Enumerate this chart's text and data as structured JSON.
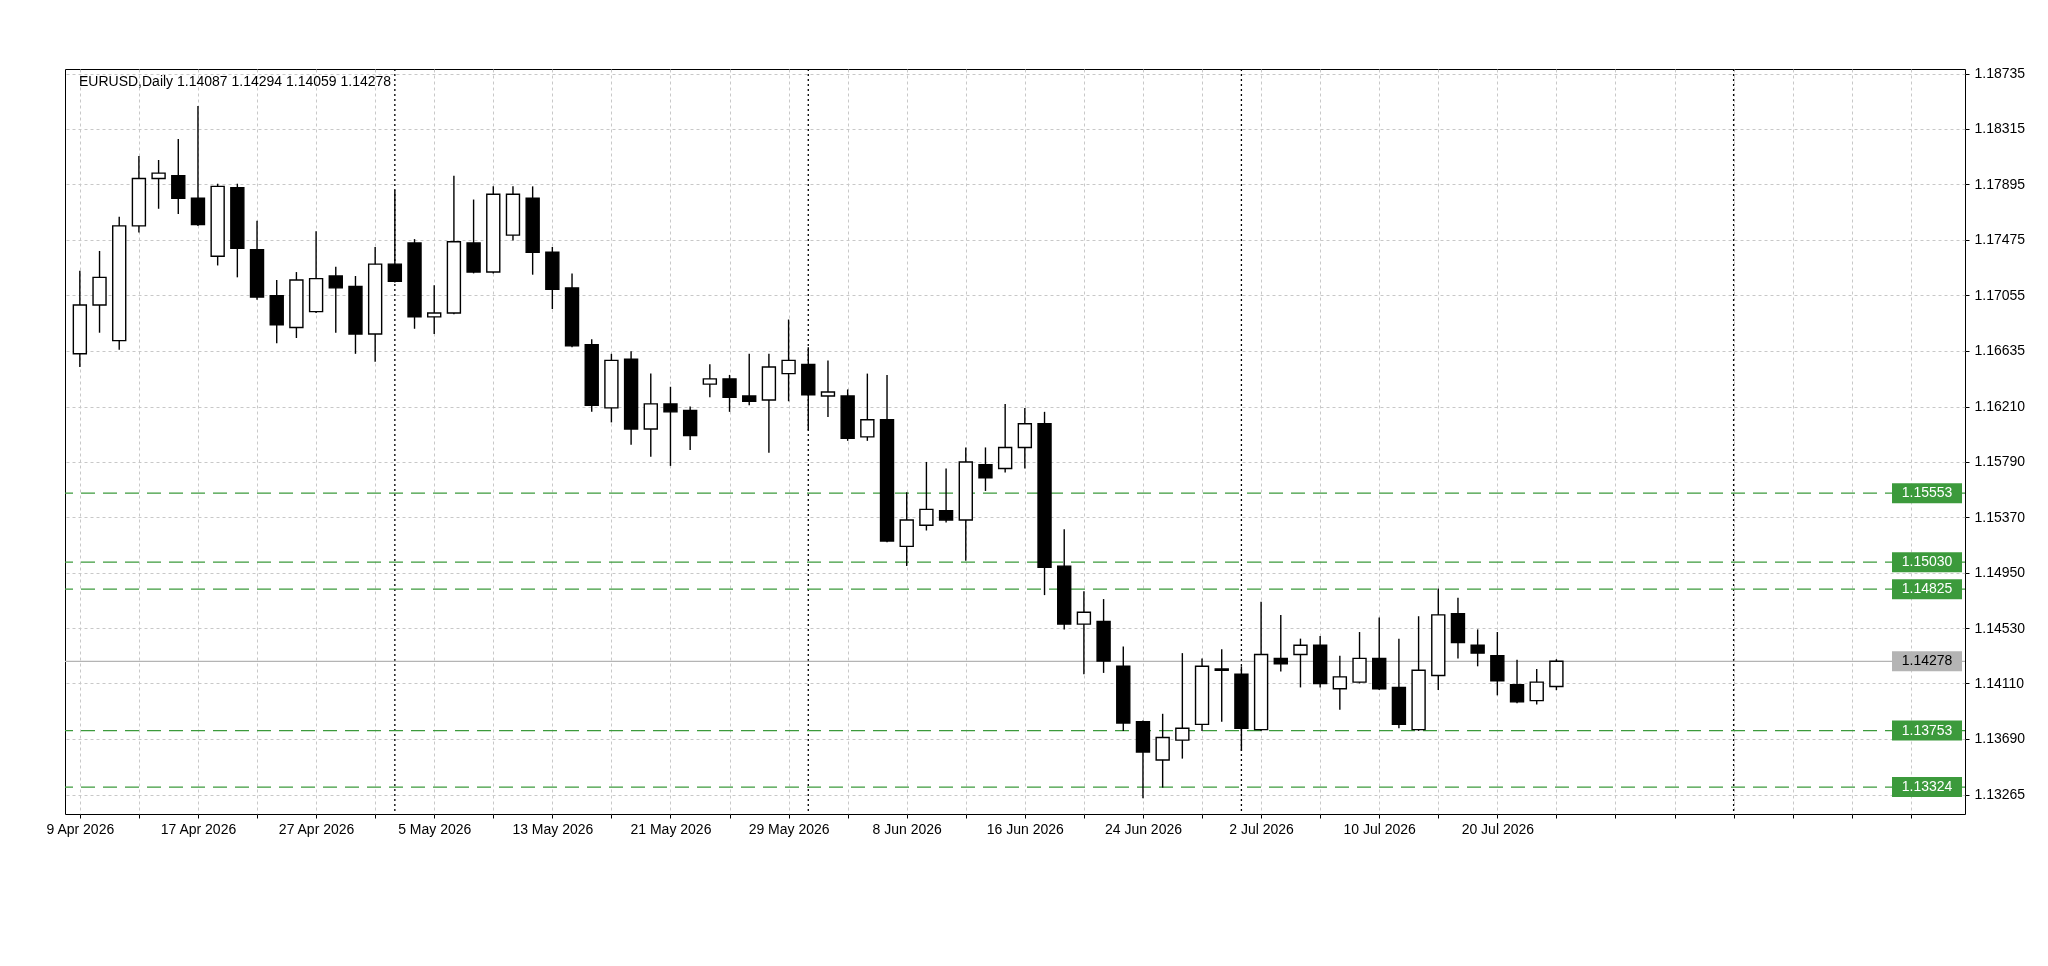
{
  "chart_data": {
    "type": "candlestick",
    "title": "EURUSD,Daily 1.14087 1.14294 1.14059 1.14278",
    "categories": [
      "9 Apr 2026",
      null,
      null,
      null,
      null,
      null,
      "17 Apr 2026",
      null,
      null,
      null,
      null,
      null,
      "27 Apr 2026",
      null,
      null,
      null,
      null,
      null,
      "5 May 2026",
      null,
      null,
      null,
      null,
      null,
      "13 May 2026",
      null,
      null,
      null,
      null,
      null,
      "21 May 2026",
      null,
      null,
      null,
      null,
      null,
      "29 May 2026",
      null,
      null,
      null,
      null,
      null,
      "8 Jun 2026",
      null,
      null,
      null,
      null,
      null,
      "16 Jun 2026",
      null,
      null,
      null,
      null,
      null,
      "24 Jun 2026",
      null,
      null,
      null,
      null,
      null,
      "2 Jul 2026",
      null,
      null,
      null,
      null,
      null,
      "10 Jul 2026",
      null,
      null,
      null,
      null,
      null,
      "20 Jul 2026",
      null,
      null,
      null,
      null,
      null,
      null,
      null,
      null,
      null,
      null,
      null,
      null,
      null,
      null,
      null,
      null,
      null,
      null,
      null,
      null,
      null,
      null,
      null
    ],
    "ohlc": [
      [
        1.1661,
        1.1724,
        1.1651,
        1.1698
      ],
      [
        1.1698,
        1.1739,
        1.1677,
        1.1719
      ],
      [
        1.1671,
        1.1765,
        1.1664,
        1.1758
      ],
      [
        1.1758,
        1.1811,
        1.1753,
        1.1794
      ],
      [
        1.1794,
        1.1808,
        1.1771,
        1.1798
      ],
      [
        1.1796,
        1.1824,
        1.1767,
        1.1779
      ],
      [
        1.1779,
        1.1849,
        1.1758,
        1.1759
      ],
      [
        1.1735,
        1.179,
        1.1728,
        1.1788
      ],
      [
        1.1787,
        1.179,
        1.1719,
        1.1741
      ],
      [
        1.174,
        1.1762,
        1.1702,
        1.1704
      ],
      [
        1.1705,
        1.1717,
        1.1669,
        1.1683
      ],
      [
        1.1681,
        1.1723,
        1.1673,
        1.1717
      ],
      [
        1.1693,
        1.1754,
        1.1692,
        1.1718
      ],
      [
        1.172,
        1.1727,
        1.1677,
        1.1711
      ],
      [
        1.1712,
        1.172,
        1.1661,
        1.1676
      ],
      [
        1.1676,
        1.1742,
        1.1655,
        1.1729
      ],
      [
        1.1729,
        1.1785,
        1.1715,
        1.1716
      ],
      [
        1.1745,
        1.1748,
        1.168,
        1.1689
      ],
      [
        1.1689,
        1.1713,
        1.1676,
        1.1692
      ],
      [
        1.1692,
        1.1796,
        1.1691,
        1.1746
      ],
      [
        1.1745,
        1.1778,
        1.1722,
        1.1723
      ],
      [
        1.1723,
        1.1788,
        1.1722,
        1.1782
      ],
      [
        1.1751,
        1.1788,
        1.1747,
        1.1782
      ],
      [
        1.1779,
        1.1788,
        1.1721,
        1.1738
      ],
      [
        1.1738,
        1.1742,
        1.1695,
        1.171
      ],
      [
        1.1711,
        1.1722,
        1.1666,
        1.1667
      ],
      [
        1.1668,
        1.1672,
        1.1617,
        1.1622
      ],
      [
        1.162,
        1.1661,
        1.1609,
        1.1656
      ],
      [
        1.1657,
        1.1663,
        1.1592,
        1.1604
      ],
      [
        1.1604,
        1.1646,
        1.1583,
        1.1623
      ],
      [
        1.1623,
        1.1636,
        1.1576,
        1.1617
      ],
      [
        1.1618,
        1.1621,
        1.1588,
        1.1599
      ],
      [
        1.1638,
        1.1653,
        1.1628,
        1.1642
      ],
      [
        1.1642,
        1.1645,
        1.1617,
        1.1628
      ],
      [
        1.1629,
        1.1661,
        1.1622,
        1.1625
      ],
      [
        1.1626,
        1.1661,
        1.1586,
        1.1651
      ],
      [
        1.1646,
        1.1687,
        1.1625,
        1.1656
      ],
      [
        1.1653,
        1.1666,
        1.1603,
        1.163
      ],
      [
        1.1629,
        1.1656,
        1.1613,
        1.1632
      ],
      [
        1.1629,
        1.1634,
        1.1595,
        1.1597
      ],
      [
        1.1598,
        1.1646,
        1.1595,
        1.1611
      ],
      [
        1.1611,
        1.1645,
        1.1518,
        1.1519
      ],
      [
        1.1515,
        1.1556,
        1.15,
        1.1535
      ],
      [
        1.1531,
        1.1579,
        1.1527,
        1.1543
      ],
      [
        1.1542,
        1.1574,
        1.1533,
        1.1535
      ],
      [
        1.1535,
        1.159,
        1.1504,
        1.1579
      ],
      [
        1.1577,
        1.159,
        1.1557,
        1.1567
      ],
      [
        1.1574,
        1.1623,
        1.1571,
        1.159
      ],
      [
        1.159,
        1.162,
        1.1574,
        1.1608
      ],
      [
        1.1608,
        1.1617,
        1.1478,
        1.1499
      ],
      [
        1.15,
        1.1528,
        1.1452,
        1.1456
      ],
      [
        1.1456,
        1.1481,
        1.1418,
        1.1465
      ],
      [
        1.1458,
        1.1475,
        1.1419,
        1.1428
      ],
      [
        1.1424,
        1.1439,
        1.1375,
        1.1381
      ],
      [
        1.1382,
        1.1383,
        1.1324,
        1.1359
      ],
      [
        1.1353,
        1.1388,
        1.1332,
        1.137
      ],
      [
        1.1368,
        1.1434,
        1.1354,
        1.1377
      ],
      [
        1.138,
        1.143,
        1.1375,
        1.1424
      ],
      [
        1.1422,
        1.1437,
        1.1382,
        1.1421
      ],
      [
        1.1418,
        1.1424,
        1.136,
        1.1377
      ],
      [
        1.1376,
        1.1473,
        1.1375,
        1.1433
      ],
      [
        1.143,
        1.1463,
        1.142,
        1.1426
      ],
      [
        1.1433,
        1.1445,
        1.1408,
        1.144
      ],
      [
        1.144,
        1.1447,
        1.1408,
        1.1411
      ],
      [
        1.1407,
        1.1432,
        1.1391,
        1.1416
      ],
      [
        1.1412,
        1.145,
        1.1411,
        1.143
      ],
      [
        1.143,
        1.1461,
        1.1406,
        1.1407
      ],
      [
        1.1408,
        1.1445,
        1.1377,
        1.138
      ],
      [
        1.1376,
        1.1462,
        1.1375,
        1.1421
      ],
      [
        1.1417,
        1.1483,
        1.1406,
        1.1463
      ],
      [
        1.1464,
        1.1476,
        1.143,
        1.1442
      ],
      [
        1.144,
        1.1452,
        1.1424,
        1.1434
      ],
      [
        1.1432,
        1.145,
        1.1402,
        1.1413
      ],
      [
        1.141,
        1.1429,
        1.1396,
        1.1397
      ],
      [
        1.1398,
        1.1422,
        1.1395,
        1.1412
      ],
      [
        1.14087,
        1.14294,
        1.14059,
        1.14278
      ],
      null,
      null,
      null,
      null,
      null,
      null,
      null,
      null,
      null,
      null,
      null,
      null,
      null,
      null,
      null,
      null,
      null,
      null,
      null,
      null
    ],
    "color": "#000000",
    "colors": [
      "#ffffff",
      "#ffffff",
      "#ffffff",
      "#ffffff",
      "#ffffff",
      "#000000",
      "#000000",
      "#ffffff",
      "#000000",
      "#000000",
      "#000000",
      "#ffffff",
      "#ffffff",
      "#000000",
      "#000000",
      "#ffffff",
      "#000000",
      "#000000",
      "#ffffff",
      "#ffffff",
      "#000000",
      "#ffffff",
      "#ffffff",
      "#000000",
      "#000000",
      "#000000",
      "#000000",
      "#ffffff",
      "#000000",
      "#ffffff",
      "#000000",
      "#000000",
      "#ffffff",
      "#000000",
      "#000000",
      "#ffffff",
      "#ffffff",
      "#000000",
      "#ffffff",
      "#000000",
      "#ffffff",
      "#000000",
      "#ffffff",
      "#ffffff",
      "#000000",
      "#ffffff",
      "#000000",
      "#ffffff",
      "#ffffff",
      "#000000",
      "#000000",
      "#ffffff",
      "#000000",
      "#000000",
      "#000000",
      "#ffffff",
      "#ffffff",
      "#ffffff",
      "#000000",
      "#000000",
      "#ffffff",
      "#000000",
      "#ffffff",
      "#000000",
      "#ffffff",
      "#ffffff",
      "#000000",
      "#000000",
      "#ffffff",
      "#ffffff",
      "#000000",
      "#000000",
      "#000000",
      "#000000",
      "#ffffff",
      "#ffffff",
      null,
      null,
      null,
      null,
      null,
      null,
      null,
      null,
      null,
      null,
      null,
      null,
      null,
      null,
      null,
      null,
      null,
      null,
      null,
      null
    ],
    "ylim": [
      1.1312,
      1.1877
    ],
    "yticks": [
      1.18735,
      1.18315,
      1.17895,
      1.17475,
      1.17055,
      1.16635,
      {
        "value": 1.1621,
        "label": "1.16210"
      },
      {
        "value": 1.1579,
        "label": "1.15790"
      },
      {
        "value": 1.1537,
        "label": "1.15370"
      },
      {
        "value": 1.1495,
        "label": "1.14950"
      },
      {
        "value": 1.1453,
        "label": "1.14530"
      },
      {
        "value": 1.1411,
        "label": "1.14110"
      },
      {
        "value": 1.1369,
        "label": "1.13690"
      },
      1.13265
    ],
    "grid": true,
    "ref_lines": [
      {
        "axis": "y",
        "value": 1.15553,
        "label": "1.15553",
        "color": "#3c9a3c",
        "line_style": "dashed"
      },
      {
        "axis": "y",
        "value": 1.1503,
        "label": "1.15030",
        "color": "#3c9a3c",
        "line_style": "dashed"
      },
      {
        "axis": "y",
        "value": 1.14825,
        "label": "1.14825",
        "color": "#3c9a3c",
        "line_style": "dashed"
      },
      {
        "axis": "y",
        "value": 1.13753,
        "label": "1.13753",
        "color": "#3c9a3c",
        "line_style": "dashed"
      },
      {
        "axis": "y",
        "value": 1.13324,
        "label": "1.13324",
        "color": "#3c9a3c",
        "line_style": "dashed"
      },
      {
        "axis": "y",
        "value": 1.14278,
        "label": "1.14278",
        "color": "#b4b4b4",
        "line_style": "solid"
      }
    ]
  }
}
